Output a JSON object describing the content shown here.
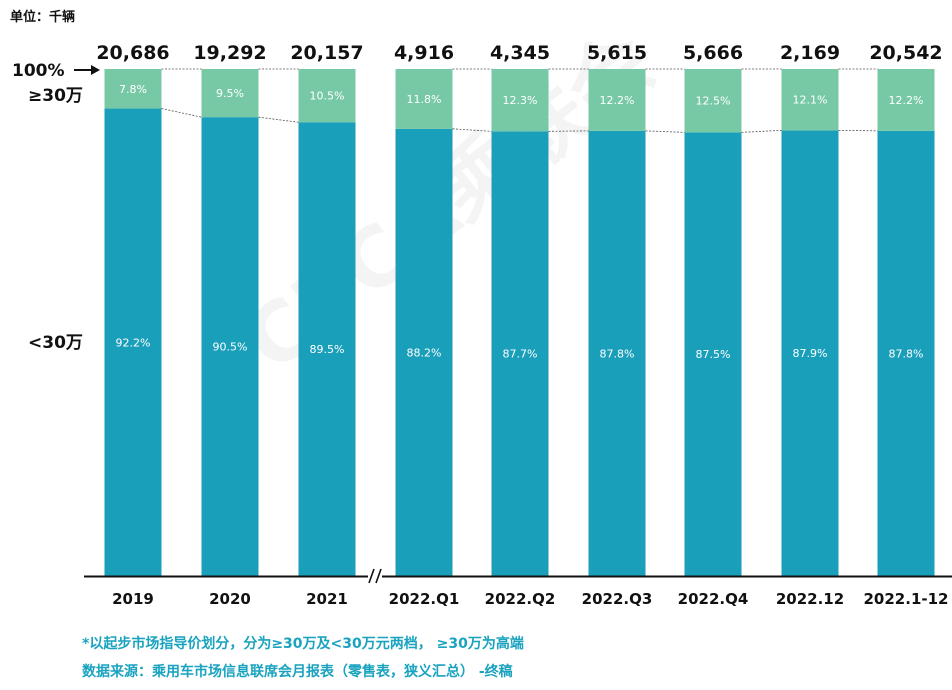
{
  "unit_label": "单位：千辆",
  "watermark": "CPCA乘联会",
  "footnotes": {
    "definition": "*以起步市场指导价划分，分为≥30万及<30万元两档， ≥30万为高端",
    "source": "数据来源：乘用车市场信息联席会月报表（零售表，狭义汇总） -终稿"
  },
  "colors": {
    "high_end": "#77c9a6",
    "below_30w": "#1a9fba",
    "note_text": "#1aa3bf"
  },
  "chart_data": {
    "type": "bar",
    "stacked": "percent",
    "categories": [
      "2019",
      "2020",
      "2021",
      "2022.Q1",
      "2022.Q2",
      "2022.Q3",
      "2022.Q4",
      "2022.12",
      "2022.1-12"
    ],
    "totals": [
      "20,686",
      "19,292",
      "20,157",
      "4,916",
      "4,345",
      "5,615",
      "5,666",
      "2,169",
      "20,542"
    ],
    "axis_break_after": "2021",
    "top_marker": "100%",
    "series": [
      {
        "name": "<30万",
        "values": [
          92.2,
          90.5,
          89.5,
          88.2,
          87.7,
          87.8,
          87.5,
          87.9,
          87.8
        ],
        "labels": [
          "92.2%",
          "90.5%",
          "89.5%",
          "88.2%",
          "87.7%",
          "87.8%",
          "87.5%",
          "87.9%",
          "87.8%"
        ]
      },
      {
        "name": "≥30万",
        "values": [
          7.8,
          9.5,
          10.5,
          11.8,
          12.3,
          12.2,
          12.5,
          12.1,
          12.2
        ],
        "labels": [
          "7.8%",
          "9.5%",
          "10.5%",
          "11.8%",
          "12.3%",
          "12.2%",
          "12.5%",
          "12.1%",
          "12.2%"
        ]
      }
    ],
    "ylim": [
      0,
      100
    ]
  }
}
